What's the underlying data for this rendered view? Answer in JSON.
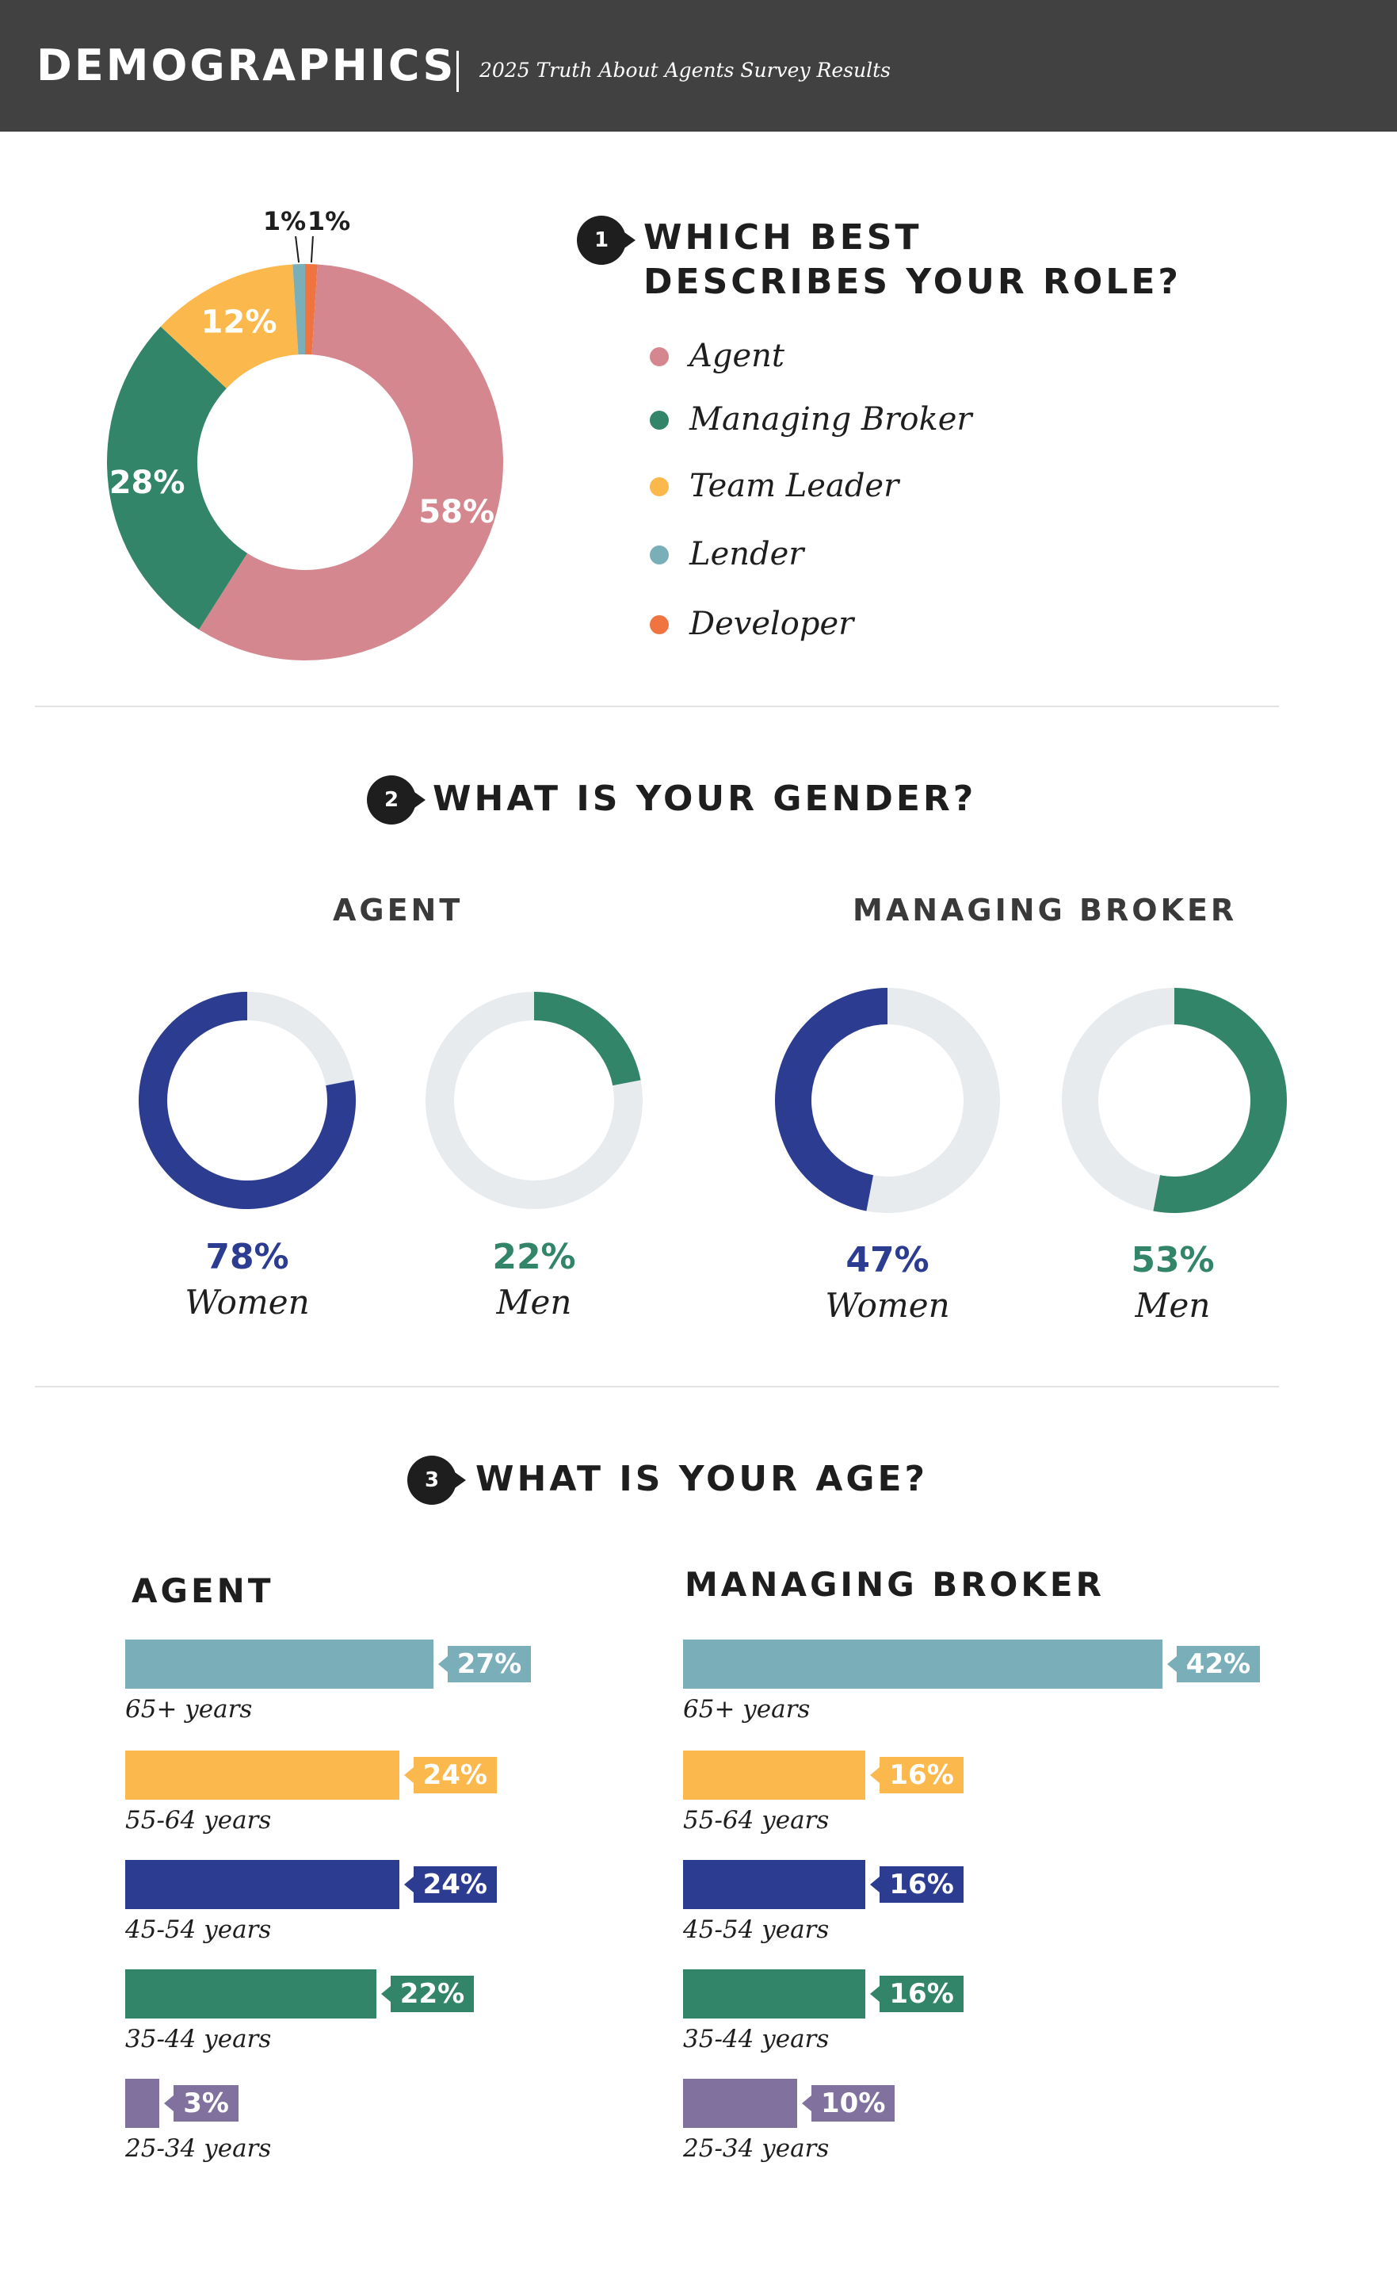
{
  "header": {
    "title": "DEMOGRAPHICS",
    "subtitle": "2025 Truth About Agents Survey Results"
  },
  "colors": {
    "agent": "#d4878f",
    "managing_broker": "#338569",
    "team_leader": "#fbb84c",
    "lender": "#7aaeb9",
    "developer": "#ef7440",
    "women": "#2b3c91",
    "men": "#338569",
    "track": "#e8ebee",
    "age_65_plus": "#7aaeb9",
    "age_55_64": "#fbb84c",
    "age_45_54": "#2b3c91",
    "age_35_44": "#338569",
    "age_25_34": "#80719e"
  },
  "questions": {
    "q1": {
      "number": "1",
      "title_line1": "WHICH BEST",
      "title_line2": "DESCRIBES YOUR ROLE?"
    },
    "q2": {
      "number": "2",
      "title": "WHAT IS YOUR GENDER?"
    },
    "q3": {
      "number": "3",
      "title": "WHAT IS YOUR AGE?"
    }
  },
  "chart_data": [
    {
      "type": "pie",
      "categories": [
        "Agent",
        "Managing Broker",
        "Team Leader",
        "Lender",
        "Developer"
      ],
      "values": [
        58,
        28,
        12,
        1,
        1
      ],
      "value_labels": [
        "58%",
        "28%",
        "12%",
        "1%",
        "1%"
      ],
      "legend": [
        "Agent",
        "Managing Broker",
        "Team Leader",
        "Lender",
        "Developer"
      ],
      "legend_position": "right",
      "donut": true
    },
    {
      "type": "pie",
      "title": "AGENT",
      "groups": [
        {
          "name": "Women",
          "value": 78,
          "label": "78%"
        },
        {
          "name": "Men",
          "value": 22,
          "label": "22%"
        }
      ]
    },
    {
      "type": "pie",
      "title": "MANAGING BROKER",
      "groups": [
        {
          "name": "Women",
          "value": 47,
          "label": "47%"
        },
        {
          "name": "Men",
          "value": 53,
          "label": "53%"
        }
      ]
    },
    {
      "type": "bar",
      "orientation": "horizontal",
      "title": "AGENT",
      "categories": [
        "65+ years",
        "55-64 years",
        "45-54 years",
        "35-44 years",
        "25-34 years"
      ],
      "values": [
        27,
        24,
        24,
        22,
        3
      ],
      "value_labels": [
        "27%",
        "24%",
        "24%",
        "22%",
        "3%"
      ]
    },
    {
      "type": "bar",
      "orientation": "horizontal",
      "title": "MANAGING BROKER",
      "categories": [
        "65+ years",
        "55-64 years",
        "45-54 years",
        "35-44 years",
        "25-34 years"
      ],
      "values": [
        42,
        16,
        16,
        16,
        10
      ],
      "value_labels": [
        "42%",
        "16%",
        "16%",
        "16%",
        "10%"
      ]
    }
  ]
}
